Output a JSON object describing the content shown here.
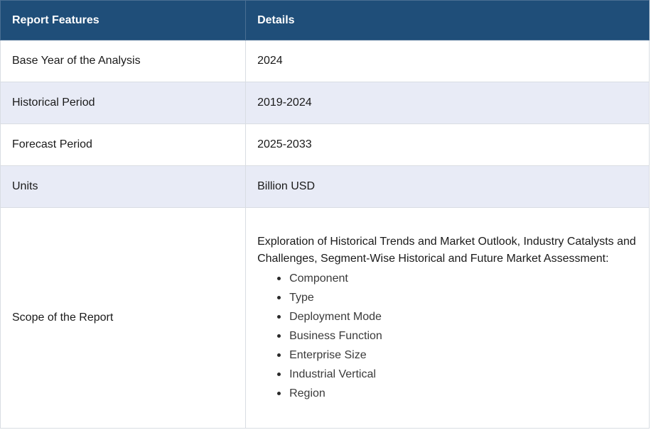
{
  "header": {
    "feature": "Report Features",
    "details": "Details"
  },
  "rows": [
    {
      "feature": "Base Year of the Analysis",
      "details": "2024"
    },
    {
      "feature": "Historical Period",
      "details": "2019-2024"
    },
    {
      "feature": "Forecast Period",
      "details": "2025-2033"
    },
    {
      "feature": "Units",
      "details": "Billion USD"
    }
  ],
  "scope": {
    "feature": "Scope of the Report",
    "description": "Exploration of Historical Trends and Market Outlook, Industry Catalysts and Challenges, Segment-Wise Historical and Future Market Assessment:",
    "items": [
      "Component",
      "Type",
      "Deployment Mode",
      "Business Function",
      "Enterprise Size",
      "Industrial Vertical",
      "Region"
    ]
  }
}
